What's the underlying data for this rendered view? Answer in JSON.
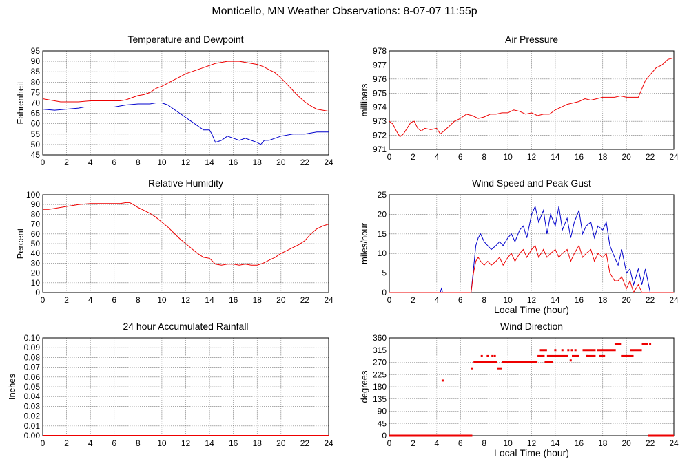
{
  "title": "Monticello, MN Weather Observations: 8-07-07 11:55p",
  "colors": {
    "red": "#ee0000",
    "blue": "#0000cc",
    "grid": "#777777"
  },
  "chart_data": [
    {
      "id": "temp",
      "type": "line",
      "title": "Temperature and Dewpoint",
      "ylabel": "Fahrenheit",
      "xlabel": "",
      "xlim": [
        0,
        24
      ],
      "ylim": [
        45,
        95
      ],
      "xticks": [
        0,
        2,
        4,
        6,
        8,
        10,
        12,
        14,
        16,
        18,
        20,
        22,
        24
      ],
      "yticks": [
        "45",
        "50",
        "55",
        "60",
        "65",
        "70",
        "75",
        "80",
        "85",
        "90",
        "95"
      ],
      "grid": true,
      "series": [
        {
          "color": "#ee0000",
          "x": [
            0,
            0.5,
            1,
            1.5,
            2,
            3,
            4,
            5,
            6,
            6.5,
            7,
            7.5,
            8,
            8.5,
            9,
            9.5,
            10,
            10.5,
            11,
            11.5,
            12,
            12.5,
            13,
            13.5,
            14,
            14.5,
            15,
            15.5,
            16,
            16.5,
            17,
            17.5,
            18,
            18.5,
            19,
            19.5,
            20,
            20.5,
            21,
            21.5,
            22,
            22.5,
            23,
            23.5,
            24
          ],
          "y": [
            72,
            71.5,
            71,
            70.5,
            70.5,
            70.5,
            71,
            71,
            71,
            71,
            71.5,
            72.5,
            73.5,
            74,
            75,
            77,
            78,
            79.5,
            81,
            82.5,
            84,
            85,
            86,
            87,
            88,
            89,
            89.5,
            90,
            90,
            90,
            89.5,
            89,
            88.5,
            87.5,
            86,
            84.5,
            82,
            79,
            76,
            73,
            70.5,
            68.5,
            67,
            66.5,
            66
          ]
        },
        {
          "color": "#0000cc",
          "x": [
            0,
            1,
            2,
            3,
            3.5,
            4,
            4.5,
            5,
            6,
            7,
            8,
            9,
            9.5,
            10,
            10.5,
            11,
            11.5,
            12,
            12.5,
            13,
            13.5,
            14,
            14.2,
            14.5,
            15,
            15.5,
            16,
            16.5,
            17,
            17.5,
            18,
            18.3,
            18.6,
            19,
            19.5,
            20,
            21,
            22,
            23,
            24
          ],
          "y": [
            67,
            66.5,
            67,
            67.5,
            68,
            68,
            68,
            68,
            68,
            69,
            69.5,
            69.5,
            70,
            70,
            69,
            67,
            65,
            63,
            61,
            59,
            57,
            57,
            55,
            51,
            52,
            54,
            53,
            52,
            53,
            52,
            51,
            50,
            52,
            52,
            53,
            54,
            55,
            55,
            56,
            56
          ]
        }
      ]
    },
    {
      "id": "pressure",
      "type": "line",
      "title": "Air Pressure",
      "ylabel": "millibars",
      "xlabel": "",
      "xlim": [
        0,
        24
      ],
      "ylim": [
        971,
        978
      ],
      "xticks": [
        0,
        2,
        4,
        6,
        8,
        10,
        12,
        14,
        16,
        18,
        20,
        22,
        24
      ],
      "yticks": [
        "971",
        "972",
        "973",
        "974",
        "975",
        "976",
        "977",
        "978"
      ],
      "grid": true,
      "series": [
        {
          "color": "#ee0000",
          "x": [
            0,
            0.3,
            0.6,
            0.9,
            1.2,
            1.5,
            1.8,
            2.1,
            2.4,
            2.7,
            3,
            3.5,
            4,
            4.3,
            4.6,
            5,
            5.5,
            6,
            6.5,
            7,
            7.5,
            8,
            8.5,
            9,
            9.5,
            10,
            10.5,
            11,
            11.5,
            12,
            12.5,
            13,
            13.5,
            14,
            14.5,
            15,
            15.5,
            16,
            16.5,
            17,
            17.5,
            18,
            18.5,
            19,
            19.5,
            20,
            20.5,
            21,
            21.3,
            21.6,
            22,
            22.5,
            23,
            23.5,
            24
          ],
          "y": [
            973,
            972.8,
            972.3,
            971.9,
            972.1,
            972.5,
            972.9,
            973,
            972.5,
            972.3,
            972.5,
            972.4,
            972.5,
            972.1,
            972.3,
            972.6,
            973,
            973.2,
            973.5,
            973.4,
            973.2,
            973.3,
            973.5,
            973.5,
            973.6,
            973.6,
            973.8,
            973.7,
            973.5,
            973.6,
            973.4,
            973.5,
            973.5,
            973.8,
            974,
            974.2,
            974.3,
            974.4,
            974.6,
            974.5,
            974.6,
            974.7,
            974.7,
            974.7,
            974.8,
            974.7,
            974.7,
            974.7,
            975.3,
            975.9,
            976.3,
            976.8,
            977,
            977.4,
            977.5
          ]
        }
      ]
    },
    {
      "id": "humidity",
      "type": "line",
      "title": "Relative Humidity",
      "ylabel": "Percent",
      "xlabel": "",
      "xlim": [
        0,
        24
      ],
      "ylim": [
        0,
        100
      ],
      "xticks": [
        0,
        2,
        4,
        6,
        8,
        10,
        12,
        14,
        16,
        18,
        20,
        22,
        24
      ],
      "yticks": [
        "0",
        "10",
        "20",
        "30",
        "40",
        "50",
        "60",
        "70",
        "80",
        "90",
        "100"
      ],
      "grid": true,
      "series": [
        {
          "color": "#ee0000",
          "x": [
            0,
            0.5,
            1,
            2,
            3,
            4,
            5,
            6,
            6.5,
            7,
            7.3,
            7.6,
            8,
            8.5,
            9,
            9.5,
            10,
            10.5,
            11,
            11.5,
            12,
            12.5,
            13,
            13.5,
            14,
            14.5,
            15,
            15.5,
            16,
            16.5,
            17,
            17.5,
            18,
            18.5,
            19,
            19.5,
            20,
            20.5,
            21,
            21.5,
            22,
            22.5,
            23,
            23.5,
            24
          ],
          "y": [
            85,
            85,
            86,
            88,
            90,
            91,
            91,
            91,
            91,
            92,
            92,
            90,
            87,
            84,
            81,
            77,
            72,
            67,
            61,
            55,
            50,
            45,
            40,
            36,
            35,
            29,
            28,
            29,
            29,
            28,
            29,
            28,
            28,
            30,
            33,
            36,
            40,
            43,
            46,
            49,
            53,
            60,
            65,
            68,
            70
          ]
        }
      ]
    },
    {
      "id": "wind",
      "type": "line",
      "title": "Wind Speed and Peak Gust",
      "ylabel": "miles/hour",
      "xlabel": "Local Time (hour)",
      "xlim": [
        0,
        24
      ],
      "ylim": [
        0,
        25
      ],
      "xticks": [
        0,
        2,
        4,
        6,
        8,
        10,
        12,
        14,
        16,
        18,
        20,
        22,
        24
      ],
      "yticks": [
        "0",
        "5",
        "10",
        "15",
        "20",
        "25"
      ],
      "grid": true,
      "series": [
        {
          "color": "#0000cc",
          "x": [
            0,
            4.3,
            4.4,
            4.5,
            4.6,
            6.9,
            7.1,
            7.3,
            7.5,
            7.7,
            8,
            8.3,
            8.6,
            9,
            9.3,
            9.6,
            10,
            10.3,
            10.6,
            11,
            11.3,
            11.6,
            12,
            12.3,
            12.6,
            13,
            13.3,
            13.6,
            14,
            14.3,
            14.6,
            15,
            15.3,
            15.6,
            16,
            16.3,
            16.6,
            17,
            17.3,
            17.6,
            18,
            18.3,
            18.6,
            19,
            19.3,
            19.6,
            20,
            20.3,
            20.6,
            21,
            21.3,
            21.6,
            22,
            22.3,
            24
          ],
          "y": [
            0,
            0,
            1,
            0,
            0,
            0,
            6,
            12,
            14,
            15,
            13,
            12,
            11,
            12,
            13,
            12,
            14,
            15,
            13,
            16,
            17,
            14,
            20,
            22,
            18,
            21,
            15,
            20,
            17,
            22,
            16,
            19,
            14,
            18,
            21,
            15,
            17,
            18,
            14,
            17,
            16,
            18,
            12,
            9,
            7,
            11,
            5,
            6,
            2,
            6,
            2,
            6,
            0,
            0,
            0
          ]
        },
        {
          "color": "#ee0000",
          "x": [
            0,
            6.9,
            7.1,
            7.3,
            7.5,
            7.7,
            8,
            8.3,
            8.6,
            9,
            9.3,
            9.6,
            10,
            10.3,
            10.6,
            11,
            11.3,
            11.6,
            12,
            12.3,
            12.6,
            13,
            13.3,
            13.6,
            14,
            14.3,
            14.6,
            15,
            15.3,
            15.6,
            16,
            16.3,
            16.6,
            17,
            17.3,
            17.6,
            18,
            18.3,
            18.6,
            19,
            19.3,
            19.6,
            20,
            20.3,
            20.6,
            21,
            21.3,
            21.6,
            22,
            24
          ],
          "y": [
            0,
            0,
            5,
            8,
            9,
            8,
            7,
            8,
            7,
            8,
            9,
            7,
            9,
            10,
            8,
            10,
            11,
            9,
            11,
            12,
            9,
            11,
            9,
            10,
            11,
            9,
            10,
            11,
            8,
            10,
            12,
            9,
            10,
            11,
            8,
            10,
            9,
            10,
            5,
            3,
            3,
            4,
            1,
            3,
            0,
            2,
            0,
            0,
            0,
            0
          ]
        }
      ]
    },
    {
      "id": "rain",
      "type": "line",
      "title": "24 hour Accumulated Rainfall",
      "ylabel": "Inches",
      "xlabel": "",
      "xlim": [
        0,
        24
      ],
      "ylim": [
        0,
        0.1
      ],
      "xticks": [
        0,
        2,
        4,
        6,
        8,
        10,
        12,
        14,
        16,
        18,
        20,
        22,
        24
      ],
      "yticks": [
        "0.00",
        "0.01",
        "0.02",
        "0.03",
        "0.04",
        "0.05",
        "0.06",
        "0.07",
        "0.08",
        "0.09",
        "0.10"
      ],
      "grid": true,
      "series": [
        {
          "color": "#ee0000",
          "x": [
            0,
            24
          ],
          "y": [
            0,
            0
          ]
        }
      ]
    },
    {
      "id": "direction",
      "type": "scatter",
      "title": "Wind Direction",
      "ylabel": "degrees",
      "xlabel": "Local Time (hour)",
      "xlim": [
        0,
        24
      ],
      "ylim": [
        0,
        360
      ],
      "xticks": [
        0,
        2,
        4,
        6,
        8,
        10,
        12,
        14,
        16,
        18,
        20,
        22,
        24
      ],
      "yticks": [
        "0",
        "45",
        "90",
        "135",
        "180",
        "225",
        "270",
        "315",
        "360"
      ],
      "grid": true,
      "segments": [
        {
          "x0": 0,
          "x1": 7,
          "y": 0
        },
        {
          "x0": 7.1,
          "x1": 9.1,
          "y": 270
        },
        {
          "x0": 9.1,
          "x1": 9.5,
          "y": 248
        },
        {
          "x0": 9.5,
          "x1": 12.5,
          "y": 270
        },
        {
          "x0": 12.5,
          "x1": 13.1,
          "y": 293
        },
        {
          "x0": 12.7,
          "x1": 13.3,
          "y": 315
        },
        {
          "x0": 13.1,
          "x1": 13.8,
          "y": 270
        },
        {
          "x0": 13.3,
          "x1": 15.1,
          "y": 293
        },
        {
          "x0": 15.4,
          "x1": 16.0,
          "y": 293
        },
        {
          "x0": 16.3,
          "x1": 17.4,
          "y": 315
        },
        {
          "x0": 16.6,
          "x1": 17.4,
          "y": 293
        },
        {
          "x0": 17.5,
          "x1": 19.1,
          "y": 315
        },
        {
          "x0": 17.7,
          "x1": 18.2,
          "y": 293
        },
        {
          "x0": 19.0,
          "x1": 19.6,
          "y": 338
        },
        {
          "x0": 19.6,
          "x1": 20.6,
          "y": 293
        },
        {
          "x0": 20.3,
          "x1": 21.3,
          "y": 315
        },
        {
          "x0": 21.3,
          "x1": 21.8,
          "y": 338
        },
        {
          "x0": 21.8,
          "x1": 24,
          "y": 0
        }
      ],
      "points": [
        {
          "x": 4.5,
          "y": 203
        },
        {
          "x": 7.0,
          "y": 248
        },
        {
          "x": 7.8,
          "y": 293
        },
        {
          "x": 8.3,
          "y": 293
        },
        {
          "x": 8.7,
          "y": 293
        },
        {
          "x": 8.9,
          "y": 293
        },
        {
          "x": 14.0,
          "y": 315
        },
        {
          "x": 14.6,
          "y": 315
        },
        {
          "x": 15.1,
          "y": 315
        },
        {
          "x": 15.4,
          "y": 315
        },
        {
          "x": 15.7,
          "y": 315
        },
        {
          "x": 15.3,
          "y": 277
        },
        {
          "x": 16.7,
          "y": 293
        },
        {
          "x": 22.0,
          "y": 338
        }
      ]
    }
  ]
}
